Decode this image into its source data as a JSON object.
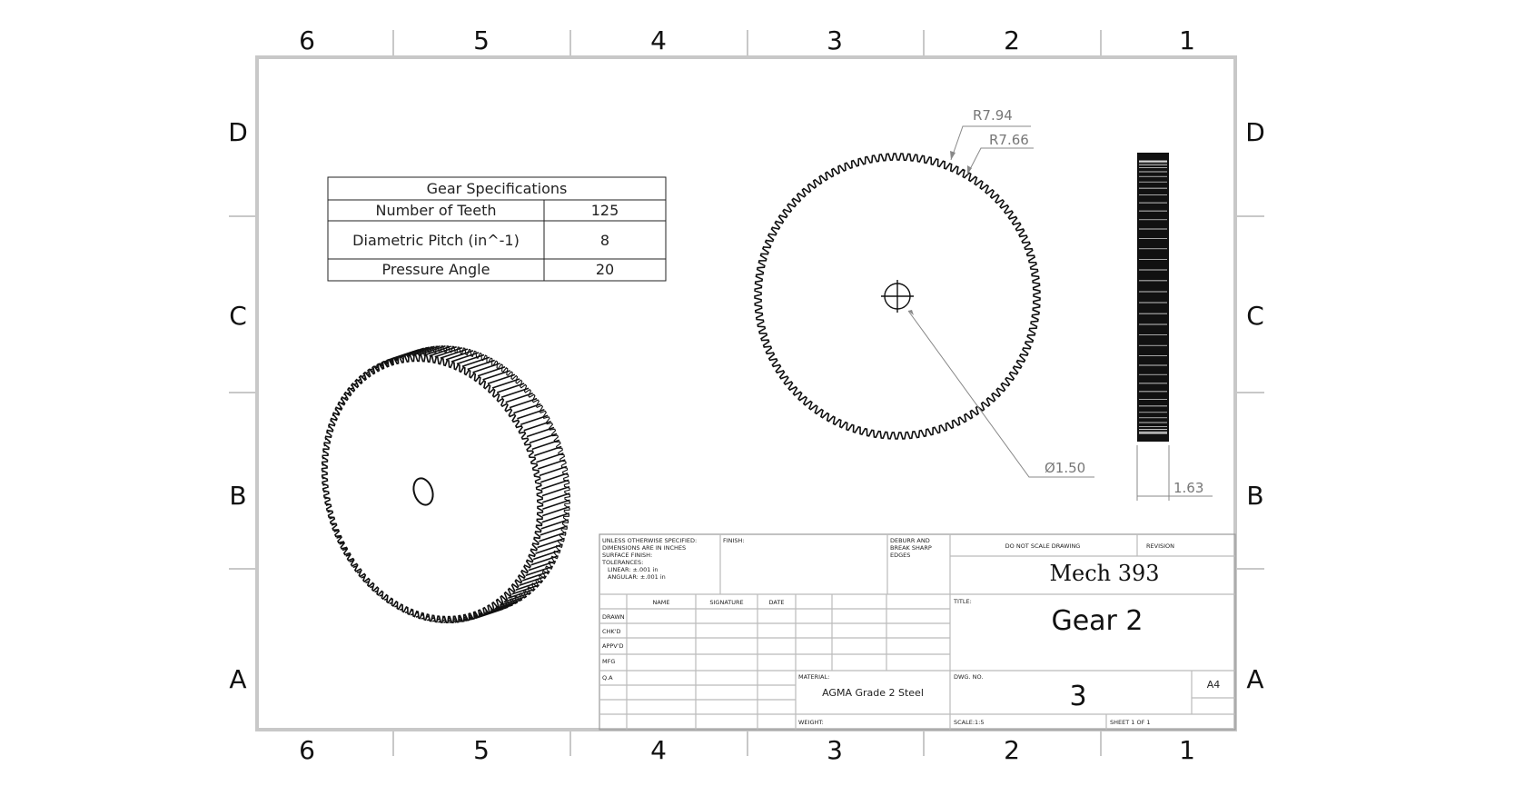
{
  "zones": {
    "columns": [
      "6",
      "5",
      "4",
      "3",
      "2",
      "1"
    ],
    "rows": [
      "D",
      "C",
      "B",
      "A"
    ]
  },
  "spec_table": {
    "title": "Gear Specifications",
    "rows": [
      {
        "label": "Number of Teeth",
        "value": "125"
      },
      {
        "label": "Diametric Pitch (in^-1)",
        "value": "8"
      },
      {
        "label": "Pressure Angle",
        "value": "20"
      }
    ]
  },
  "dimensions": {
    "outer_radius": "R7.94",
    "root_radius": "R7.66",
    "bore": "Ø1.50",
    "face_width": "1.63"
  },
  "gear": {
    "tooth_count": 125
  },
  "title_block": {
    "tolerance_note": [
      "UNLESS OTHERWISE SPECIFIED:",
      "DIMENSIONS ARE IN INCHES",
      "SURFACE FINISH:",
      "TOLERANCES:",
      "LINEAR: ±.001 in",
      "ANGULAR: ±.001 in"
    ],
    "finish_label": "FINISH:",
    "deburr_note": [
      "DEBURR AND",
      "BREAK SHARP",
      "EDGES"
    ],
    "do_not_scale": "DO NOT SCALE DRAWING",
    "revision_label": "REVISION",
    "course": "Mech 393",
    "title_label": "TITLE:",
    "title": "Gear 2",
    "headers": [
      "NAME",
      "SIGNATURE",
      "DATE"
    ],
    "roles": [
      "DRAWN",
      "CHK'D",
      "APPV'D",
      "MFG",
      "Q.A"
    ],
    "material_label": "MATERIAL:",
    "material": "AGMA Grade 2 Steel",
    "dwg_no_label": "DWG. NO.",
    "dwg_no": "3",
    "sheet_size": "A4",
    "weight_label": "WEIGHT:",
    "scale_label": "SCALE:1:5",
    "sheet_label": "SHEET 1 OF 1"
  }
}
